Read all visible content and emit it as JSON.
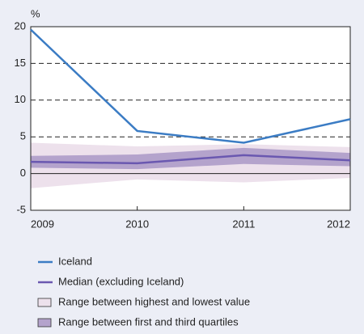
{
  "chart_data": {
    "type": "line",
    "unit_label": "%",
    "x": [
      2009,
      2010,
      2011,
      2012
    ],
    "xlim": [
      2009,
      2012
    ],
    "xticks": [
      2009,
      2010,
      2011,
      2012
    ],
    "ylim": [
      -5,
      20
    ],
    "yticks": [
      -5,
      0,
      5,
      10,
      15,
      20
    ],
    "grid": true,
    "bands": [
      {
        "name": "Range between highest and lowest value",
        "color": "#ede1ec",
        "high": [
          4.2,
          3.7,
          4.0,
          3.6
        ],
        "low": [
          -2.0,
          -0.8,
          -1.2,
          -0.6
        ]
      },
      {
        "name": "Range between first and third quartiles",
        "color": "#b4a3cc",
        "high": [
          2.4,
          2.6,
          3.5,
          2.8
        ],
        "low": [
          0.8,
          0.6,
          1.3,
          1.0
        ]
      }
    ],
    "series": [
      {
        "name": "Iceland",
        "color": "#3b7cc4",
        "values": [
          19.6,
          5.8,
          4.2,
          7.4
        ]
      },
      {
        "name": "Median (excluding Iceland)",
        "color": "#6a58b0",
        "values": [
          1.6,
          1.4,
          2.5,
          1.8
        ]
      }
    ]
  }
}
